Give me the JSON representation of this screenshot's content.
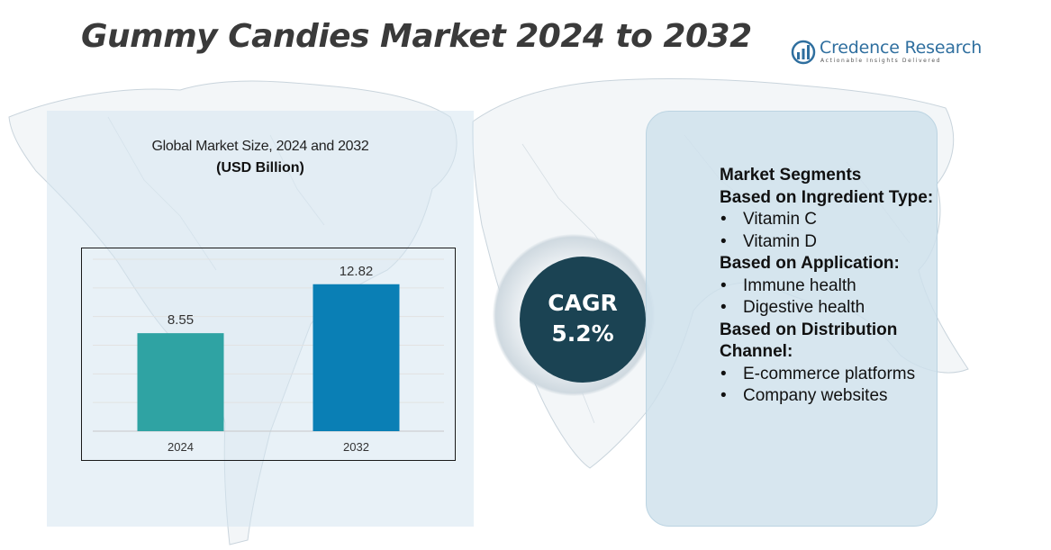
{
  "title": "Gummy Candies Market 2024 to 2032",
  "logo": {
    "name": "Credence Research",
    "tagline": "Actionable Insights Delivered",
    "icon": "credence-logo-icon"
  },
  "chart_data": {
    "type": "bar",
    "title": "Global Market Size, 2024 and 2032",
    "subtitle": "(USD Billion)",
    "categories": [
      "2024",
      "2032"
    ],
    "values": [
      8.55,
      12.82
    ],
    "value_labels": [
      "8.55",
      "12.82"
    ],
    "colors": [
      "#2fa3a3",
      "#0a7fb5"
    ],
    "ylim": [
      0,
      15
    ],
    "grid": true,
    "legend": "none"
  },
  "cagr": {
    "label": "CAGR",
    "value": "5.2%"
  },
  "segments": {
    "title": "Market Segments",
    "groups": [
      {
        "heading": "Based on Ingredient Type:",
        "items": [
          "Vitamin C",
          "Vitamin D"
        ]
      },
      {
        "heading": "Based on Application:",
        "items": [
          "Immune health",
          "Digestive health"
        ]
      },
      {
        "heading": "Based on Distribution Channel:",
        "items": [
          "E-commerce platforms",
          "Company websites"
        ]
      }
    ]
  }
}
